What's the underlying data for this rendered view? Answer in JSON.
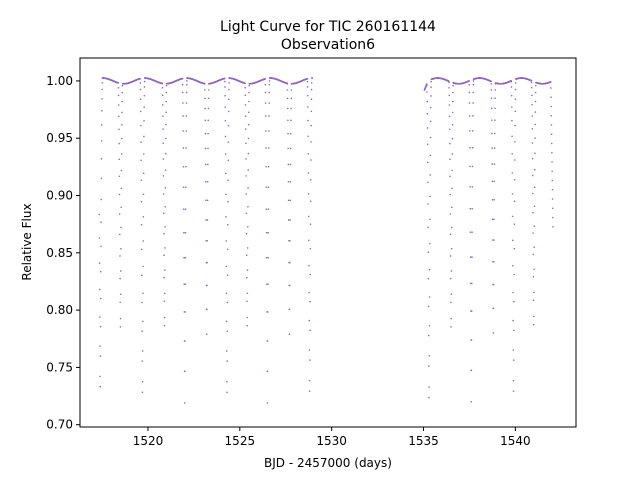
{
  "chart_data": {
    "type": "scatter",
    "title": "Light Curve for TIC 260161144",
    "subtitle": "Observation6",
    "xlabel": "BJD - 2457000 (days)",
    "ylabel": "Relative Flux",
    "xlim": [
      1516.3,
      1543.3
    ],
    "ylim": [
      0.698,
      1.02
    ],
    "xticks": [
      1520,
      1525,
      1530,
      1535,
      1540
    ],
    "yticks": [
      0.7,
      0.75,
      0.8,
      0.85,
      0.9,
      0.95,
      1.0
    ],
    "xtick_labels": [
      "1520",
      "1525",
      "1530",
      "1535",
      "1540"
    ],
    "ytick_labels": [
      "0.70",
      "0.75",
      "0.80",
      "0.85",
      "0.90",
      "0.95",
      "1.00"
    ],
    "grid": false,
    "legend": "none",
    "point_color": "#9467bd",
    "series": [
      {
        "segments": [
          [
            1517.35,
            1528.95
          ],
          [
            1535.05,
            1542.05
          ]
        ],
        "eclipses": [
          {
            "t": 1517.4,
            "depth": 0.724
          },
          {
            "t": 1518.5,
            "depth": 0.778
          },
          {
            "t": 1519.7,
            "depth": 0.719
          },
          {
            "t": 1520.9,
            "depth": 0.779
          },
          {
            "t": 1522.0,
            "depth": 0.719
          },
          {
            "t": 1523.2,
            "depth": 0.779
          },
          {
            "t": 1524.3,
            "depth": 0.719
          },
          {
            "t": 1525.4,
            "depth": 0.779
          },
          {
            "t": 1526.5,
            "depth": 0.719
          },
          {
            "t": 1527.7,
            "depth": 0.779
          },
          {
            "t": 1528.8,
            "depth": 0.72
          },
          {
            "t": 1535.3,
            "depth": 0.714
          },
          {
            "t": 1536.5,
            "depth": 0.778
          },
          {
            "t": 1537.6,
            "depth": 0.72
          },
          {
            "t": 1538.8,
            "depth": 0.78
          },
          {
            "t": 1539.9,
            "depth": 0.72
          },
          {
            "t": 1541.0,
            "depth": 0.78
          }
        ],
        "baseline": 1.0,
        "segment_end_values": [
          {
            "t": 1535.05,
            "value": 0.993
          },
          {
            "t": 1542.05,
            "value": 0.87
          }
        ]
      }
    ]
  }
}
